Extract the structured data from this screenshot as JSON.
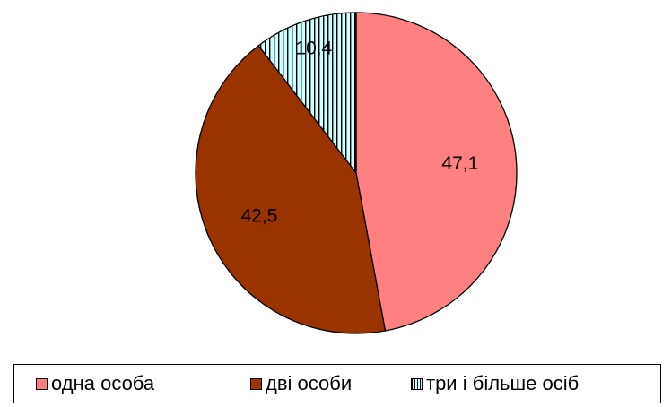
{
  "chart_data": {
    "type": "pie",
    "categories": [
      "одна особа",
      "дві особи",
      "три і більше осіб"
    ],
    "values": [
      47.1,
      42.5,
      10.4
    ],
    "value_labels": [
      "47,1",
      "42,5",
      "10,4"
    ],
    "colors": [
      "#ff8080",
      "#993300",
      "#ccffff"
    ],
    "patterns": [
      "solid",
      "solid",
      "vertical-stripes"
    ],
    "pattern_stripe_color": "#000000",
    "start_angle": "12 o'clock",
    "direction": "clockwise",
    "legend_position": "bottom",
    "title": ""
  },
  "legend": {
    "items": [
      "одна особа",
      "дві особи",
      "три і більше осіб"
    ]
  }
}
